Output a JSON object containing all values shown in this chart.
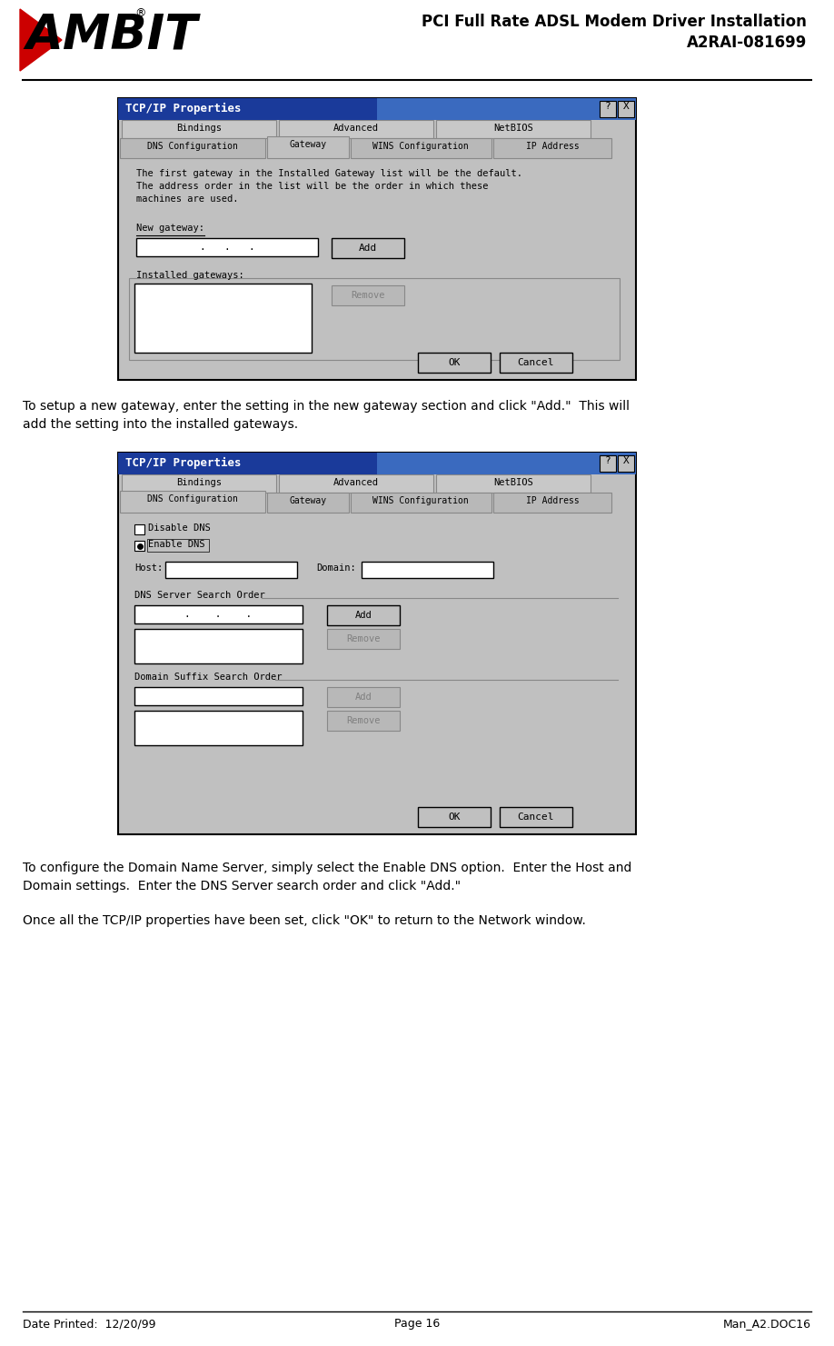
{
  "title_line1": "PCI Full Rate ADSL Modem Driver Installation",
  "title_line2": "A2RAI-081699",
  "footer_left": "Date Printed:  12/20/99",
  "footer_center": "Page 16",
  "footer_right": "Man_A2.DOC16",
  "bg_color": "#ffffff",
  "dialog1_title": "TCP/IP Properties",
  "dialog2_title": "TCP/IP Properties",
  "para1_line1": "To setup a new gateway, enter the setting in the new gateway section and click \"Add.\"  This will",
  "para1_line2": "add the setting into the installed gateways.",
  "para2_line1": "To configure the Domain Name Server, simply select the Enable DNS option.  Enter the Host and",
  "para2_line2": "Domain settings.  Enter the DNS Server search order and click \"Add.\"",
  "para3": "Once all the TCP/IP properties have been set, click \"OK\" to return to the Network window.",
  "dialog_bg": "#c0c0c0",
  "dialog_title_bg1": "#1a3a9a",
  "dialog_title_bg2": "#1a3a9a",
  "dialog_title_color": "#ffffff",
  "input_bg": "#ffffff",
  "gray_btn": "#c0c0c0",
  "gray_btn_disabled": "#b8b8b8",
  "tab_row1": [
    [
      "Bindings",
      170
    ],
    [
      "Advanced",
      170
    ],
    [
      "NetBIOS",
      170
    ]
  ],
  "tab_row2_d1": [
    [
      "DNS Configuration",
      160
    ],
    [
      "Gateway",
      90
    ],
    [
      "WINS Configuration",
      155
    ],
    [
      "IP Address",
      130
    ]
  ],
  "tab_row2_d2": [
    [
      "DNS Configuration",
      160
    ],
    [
      "Gateway",
      90
    ],
    [
      "WINS Configuration",
      155
    ],
    [
      "IP Address",
      130
    ]
  ],
  "d1_active_tab": "Gateway",
  "d2_active_tab": "DNS Configuration"
}
